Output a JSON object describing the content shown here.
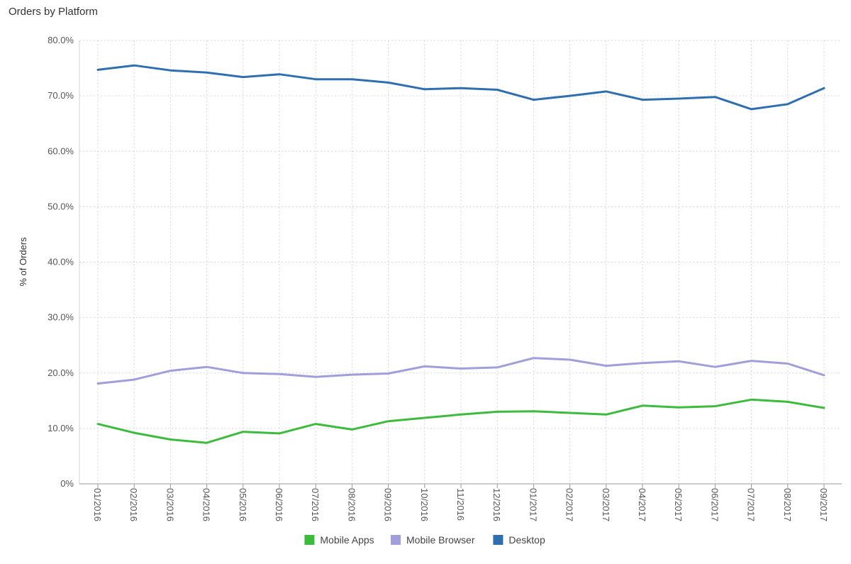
{
  "chart_data": {
    "type": "line",
    "title": "Orders by Platform",
    "xlabel": "",
    "ylabel": "% of Orders",
    "ylim": [
      0,
      80
    ],
    "y_ticks": [
      0,
      10,
      20,
      30,
      40,
      50,
      60,
      70,
      80
    ],
    "y_tick_labels": [
      "0%",
      "10.0%",
      "20.0%",
      "30.0%",
      "40.0%",
      "50.0%",
      "60.0%",
      "70.0%",
      "80.0%"
    ],
    "categories": [
      "01/2016",
      "02/2016",
      "03/2016",
      "04/2016",
      "05/2016",
      "06/2016",
      "07/2016",
      "08/2016",
      "09/2016",
      "10/2016",
      "11/2016",
      "12/2016",
      "01/2017",
      "02/2017",
      "03/2017",
      "04/2017",
      "05/2017",
      "06/2017",
      "07/2017",
      "08/2017",
      "09/2017"
    ],
    "grid": true,
    "legend_position": "bottom",
    "series": [
      {
        "name": "Mobile Apps",
        "color": "#3dbb3d",
        "values": [
          10.8,
          9.2,
          8.0,
          7.4,
          9.4,
          9.1,
          10.8,
          9.8,
          11.3,
          11.9,
          12.5,
          13.0,
          13.1,
          12.8,
          12.5,
          14.1,
          13.8,
          14.0,
          15.2,
          14.8,
          13.7
        ]
      },
      {
        "name": "Mobile Browser",
        "color": "#a09fdc",
        "values": [
          18.1,
          18.8,
          20.4,
          21.1,
          20.0,
          19.8,
          19.3,
          19.7,
          19.9,
          21.2,
          20.8,
          21.0,
          22.7,
          22.4,
          21.3,
          21.8,
          22.1,
          21.1,
          22.2,
          21.7,
          19.6
        ]
      },
      {
        "name": "Desktop",
        "color": "#2f6fb0",
        "values": [
          74.7,
          75.5,
          74.6,
          74.2,
          73.4,
          73.9,
          73.0,
          73.0,
          72.4,
          71.2,
          71.4,
          71.1,
          69.3,
          70.0,
          70.8,
          69.3,
          69.5,
          69.8,
          67.6,
          68.5,
          71.4
        ]
      }
    ]
  }
}
